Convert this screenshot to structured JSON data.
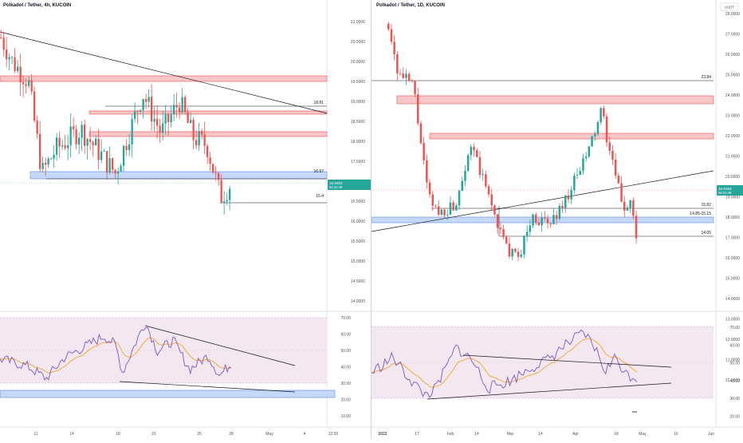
{
  "left": {
    "title": "Polkadot / Tether, 4h, KUCOIN",
    "price_axis": [
      "21.0000",
      "20.5000",
      "20.0000",
      "19.5000",
      "19.0000",
      "18.5000",
      "18.0000",
      "17.5000",
      "17.0000",
      "16.5000",
      "16.0000",
      "15.5000",
      "15.0000",
      "14.5000",
      "14.0000"
    ],
    "price_tag": {
      "price": "16.9453",
      "time": "02:31:49"
    },
    "level_labels": [
      "18.81",
      "16.97",
      "16.4"
    ],
    "rsi_axis": [
      "70.00",
      "60.00",
      "50.00",
      "40.00",
      "30.00",
      "20.00",
      "10.00"
    ],
    "time_axis": [
      "11",
      "14",
      "18",
      "21",
      "25",
      "28",
      "May",
      "4",
      "12:00"
    ]
  },
  "right": {
    "title": "Polkadot / Tether, 1D, KUCOIN",
    "currency": "USDT",
    "price_axis": [
      "28.0000",
      "27.0000",
      "26.0000",
      "25.0000",
      "24.0000",
      "23.0000",
      "22.0000",
      "21.0000",
      "20.0000",
      "19.0000",
      "18.0000",
      "17.0000",
      "16.0000",
      "15.0000",
      "14.0000",
      "13.0000",
      "12.0000",
      "11.0000",
      "10.0000"
    ],
    "price_tag": {
      "price": "16.9453",
      "time": "06:31:49"
    },
    "level_labels": [
      "23.84",
      "15.82",
      "14.85-15.15",
      "14.05"
    ],
    "rsi_axis": [
      "70.00",
      "60.00",
      "50.00",
      "40.00",
      "30.00",
      "20.00"
    ],
    "time_axis": [
      "2022",
      "17",
      "Feb",
      "14",
      "Mar",
      "14",
      "Apr",
      "18",
      "May",
      "16",
      "Jun"
    ]
  },
  "colors": {
    "up": "#26a69a",
    "down": "#ef5350",
    "rsi": "#7e57c2",
    "rsi_ma": "#f4a62a",
    "resistance": "#f7c6c8",
    "support": "#c5d8f7"
  }
}
